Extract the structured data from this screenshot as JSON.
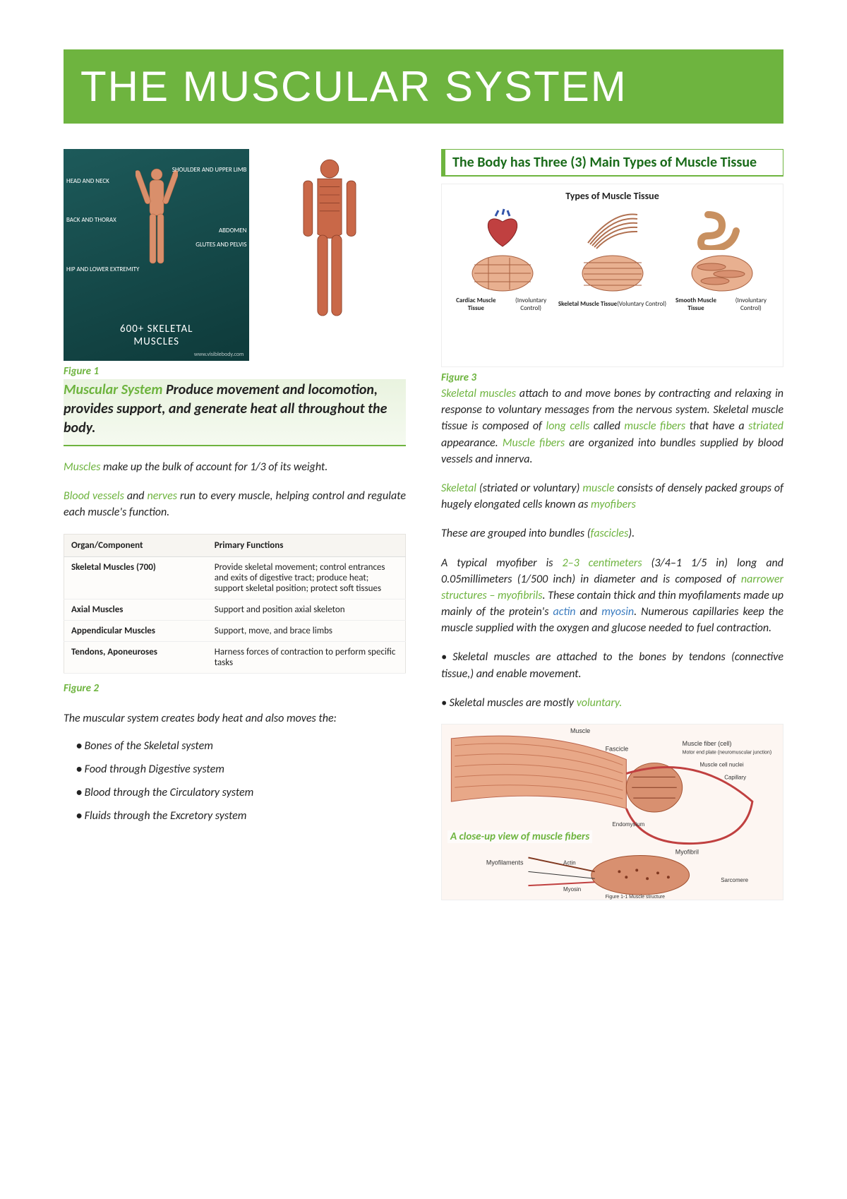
{
  "title": "THE MUSCULAR SYSTEM",
  "colors": {
    "accent": "#6eb43f",
    "accent_dark": "#1a6b1a",
    "link": "#3a7bbf",
    "page_bg": "#ffffff"
  },
  "left": {
    "anat_labels": {
      "head": "HEAD AND\nNECK",
      "shoulder": "SHOULDER AND\nUPPER LIMB",
      "back": "BACK AND\nTHORAX",
      "abdomen": "ABDOMEN",
      "glutes": "GLUTES AND PELVIS",
      "hip": "HIP AND LOWER\nEXTREMITY",
      "count": "600+ SKELETAL",
      "count2": "MUSCLES",
      "site": "www.visiblebody.com"
    },
    "fig1": "Figure 1",
    "lead_hl": "Muscular System",
    "lead_rest": " Produce movement and locomotion, provides support, and generate heat all throughout the body.",
    "p1_a": "Muscles",
    "p1_b": " make up the bulk of account for 1/3 of its weight.",
    "p2_a": "Blood vessels",
    "p2_b": " and ",
    "p2_c": "nerves",
    "p2_d": " run to every muscle, helping control and regulate each muscle's function.",
    "table": {
      "h1": "Organ/Component",
      "h2": "Primary Functions",
      "rows": [
        [
          "Skeletal Muscles (700)",
          "Provide skeletal movement; control entrances and exits of digestive tract; produce heat; support skeletal position; protect soft tissues"
        ],
        [
          "Axial Muscles",
          "Support and position axial skeleton"
        ],
        [
          "Appendicular Muscles",
          "Support, move, and brace limbs"
        ],
        [
          "Tendons, Aponeuroses",
          "Harness forces of contraction to perform specific tasks"
        ]
      ]
    },
    "fig2": "Figure 2",
    "p3": "The muscular system creates body heat and also moves the:",
    "list": [
      "Bones of the Skeletal system",
      "Food through Digestive system",
      "Blood through the Circulatory system",
      "Fluids through the Excretory system"
    ]
  },
  "right": {
    "section": "The Body has Three (3) Main Types of Muscle Tissue",
    "tissue_title": "Types of Muscle Tissue",
    "tissue": [
      {
        "name": "Cardiac Muscle Tissue",
        "sub": "(Involuntary Control)"
      },
      {
        "name": "Skeletal Muscle Tissue",
        "sub": "(Voluntary Control)"
      },
      {
        "name": "Smooth Muscle Tissue",
        "sub": "(Involuntary Control)"
      }
    ],
    "fig3": "Figure 3",
    "p1": {
      "a": "Skeletal muscles",
      "b": " attach to and move bones by contracting and relaxing in response to voluntary messages from the nervous system. Skeletal muscle tissue is composed of ",
      "c": "long cells",
      "d": " called ",
      "e": "muscle fibers",
      "f": " that have a ",
      "g": "striated",
      "h": " appearance. ",
      "i": "Muscle fibers",
      "j": " are organized into bundles supplied by blood vessels and innerva."
    },
    "p2": {
      "a": "Skeletal",
      "b": " (striated or voluntary) ",
      "c": "muscle",
      "d": " consists of densely packed groups of hugely elongated cells known as ",
      "e": "myofibers"
    },
    "p3a": "These are grouped into bundles (",
    "p3b": "fascicles",
    "p3c": ").",
    "p4": {
      "a": "A typical myofiber is ",
      "b": "2–3 centimeters",
      "c": " (3/4–1 1/5 in) long and 0.05millimeters (1/500 inch) in diameter and is composed of ",
      "d": "narrower structures – myofibrils",
      "e": ". These contain thick and thin myofilaments made up mainly of the protein's ",
      "f": "actin",
      "g": " and ",
      "h": "myosin",
      "i": ". Numerous capillaries keep the muscle supplied with the oxygen and glucose needed to fuel contraction."
    },
    "b1": "Skeletal muscles are attached to the bones by tendons (connective tissue,) and enable movement.",
    "b2a": "Skeletal muscles are mostly ",
    "b2b": "voluntary.",
    "fiber_caption": "A close-up view of muscle fibers",
    "fiber_labels": [
      "Muscle",
      "Fascicle",
      "Muscle fiber (cell)",
      "Motor end plate (neuromuscular junction)",
      "Muscle cell nuclei",
      "Capillary",
      "Endomysium",
      "Myofibril",
      "Myofilaments",
      "Actin",
      "Myosin",
      "Sarcomere",
      "Figure 1-1 Muscle structure"
    ]
  }
}
